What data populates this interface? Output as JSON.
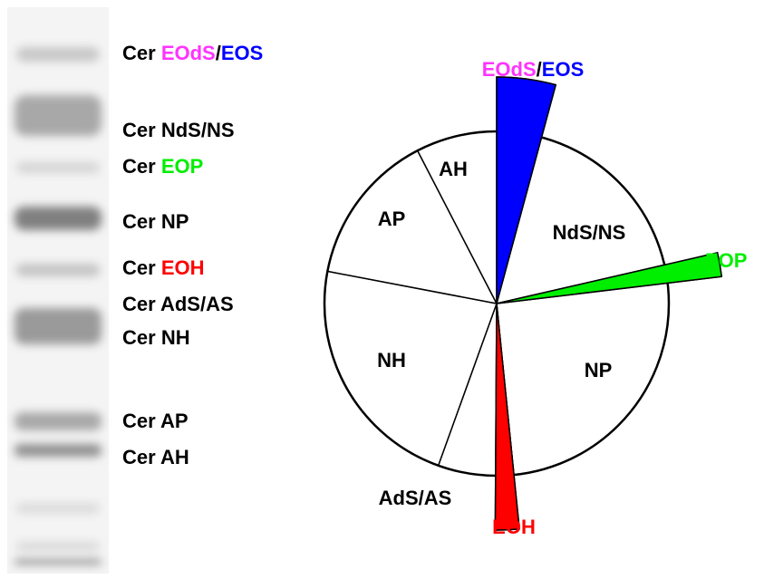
{
  "chart_data": {
    "type": "pie",
    "categories": [
      "EOdS/EOS",
      "NdS/NS",
      "EOP",
      "NP",
      "EOH",
      "AdS/AS",
      "NH",
      "AP",
      "AH"
    ],
    "values": [
      4.2,
      17.2,
      1.7,
      25.3,
      1.7,
      5.4,
      22.5,
      14.4,
      7.6
    ],
    "colors": [
      "#0000ff",
      "#ffffff",
      "#00ee00",
      "#ffffff",
      "#ff0000",
      "#ffffff",
      "#ffffff",
      "#ffffff",
      "#ffffff"
    ],
    "label_colors": [
      [
        "#ff33ff",
        "#0000ff"
      ],
      [
        "#000000"
      ],
      [
        "#00ee00"
      ],
      [
        "#000000"
      ],
      [
        "#ff0000"
      ],
      [
        "#000000"
      ],
      [
        "#000000"
      ],
      [
        "#000000"
      ],
      [
        "#000000"
      ]
    ],
    "exploded": [
      true,
      false,
      true,
      false,
      true,
      false,
      false,
      false,
      false
    ],
    "lane_labels": [
      "Cer EOdS/EOS",
      "Cer NdS/NS",
      "Cer EOP",
      "Cer NP",
      "Cer EOH",
      "Cer AdS/AS",
      "Cer NH",
      "Cer AP",
      "Cer AH"
    ],
    "lane_label_colors": [
      [
        "#000000",
        "#ff33ff",
        "#0000ff"
      ],
      [
        "#000000"
      ],
      [
        "#000000",
        "#00ee00"
      ],
      [
        "#000000"
      ],
      [
        "#000000",
        "#ff0000"
      ],
      [
        "#000000"
      ],
      [
        "#000000"
      ],
      [
        "#000000"
      ],
      [
        "#000000"
      ]
    ]
  }
}
